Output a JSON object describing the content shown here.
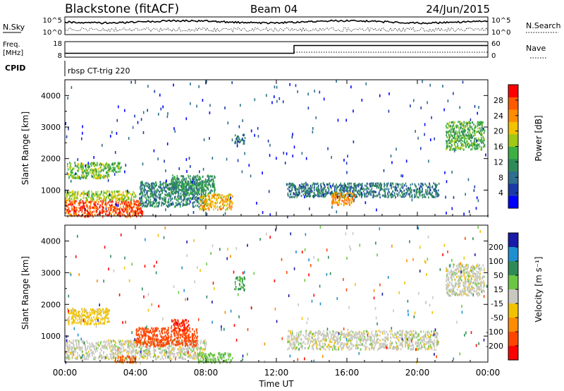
{
  "header": {
    "station": "Blackstone (fitACF)",
    "beam": "Beam 04",
    "date": "24/Jun/2015"
  },
  "top_panels": {
    "nsky_label": "N.Sky",
    "nsearch_label": "N.Search",
    "noise_ticks_left": [
      "10^5",
      "10^0"
    ],
    "noise_ticks_right": [
      "10^5",
      "10^0"
    ],
    "freq_label_1": "Freq.",
    "freq_label_2": "[MHz]",
    "freq_ticks": [
      "18",
      "8"
    ],
    "nave_label": "Nave",
    "nave_ticks": [
      "60",
      "0"
    ],
    "cpid_label": "CPID",
    "cpid_text": "rbsp CT-trig 220"
  },
  "power_panel": {
    "ylabel": "Slant Range [km]",
    "yticks": [
      "1000",
      "2000",
      "3000",
      "4000"
    ],
    "colorbar_title": "Power [dB]",
    "colorbar_ticks": [
      "4",
      "8",
      "12",
      "16",
      "20",
      "24",
      "28"
    ],
    "colorbar_colors": [
      "#0000ff",
      "#1a3aa8",
      "#2e6e8e",
      "#2e8b57",
      "#3cb043",
      "#a0c814",
      "#f2c200",
      "#ff8c00",
      "#ff5a00",
      "#ff0000"
    ]
  },
  "velocity_panel": {
    "ylabel": "Slant Range [km]",
    "yticks": [
      "1000",
      "2000",
      "3000",
      "4000"
    ],
    "colorbar_title": "Velocity [m s⁻¹]",
    "colorbar_ticks": [
      "200",
      "100",
      "50",
      "15",
      "-15",
      "-50",
      "-100",
      "-200"
    ],
    "colorbar_colors": [
      "#1a1aa8",
      "#1e90d0",
      "#2e8b57",
      "#6cc644",
      "#c8c8c0",
      "#f2c200",
      "#ff8c00",
      "#ff4500",
      "#ff0000"
    ]
  },
  "x_axis": {
    "tick_labels": [
      "00:00",
      "04:00",
      "08:00",
      "12:00",
      "16:00",
      "20:00",
      "00:00"
    ],
    "xlabel": "Time UT"
  },
  "chart_data": {
    "type": "heatmap",
    "x_range_hours": [
      0,
      24
    ],
    "y_range_km": [
      180,
      4500
    ],
    "power_regions_db": [
      {
        "t0": 0.0,
        "t1": 4.4,
        "r0": 180,
        "r1": 700,
        "power": 28
      },
      {
        "t0": 0.0,
        "t1": 4.0,
        "r0": 700,
        "r1": 1000,
        "power": 18
      },
      {
        "t0": 0.1,
        "t1": 2.5,
        "r0": 1400,
        "r1": 1900,
        "power": 16
      },
      {
        "t0": 2.4,
        "t1": 3.2,
        "r0": 1600,
        "r1": 1900,
        "power": 14
      },
      {
        "t0": 4.2,
        "t1": 8.0,
        "r0": 500,
        "r1": 1300,
        "power": 10
      },
      {
        "t0": 6.0,
        "t1": 8.5,
        "r0": 900,
        "r1": 1500,
        "power": 12
      },
      {
        "t0": 7.6,
        "t1": 9.5,
        "r0": 400,
        "r1": 900,
        "power": 22
      },
      {
        "t0": 9.6,
        "t1": 10.2,
        "r0": 2500,
        "r1": 2800,
        "power": 8
      },
      {
        "t0": 12.6,
        "t1": 21.2,
        "r0": 800,
        "r1": 1250,
        "power": 9
      },
      {
        "t0": 15.1,
        "t1": 16.4,
        "r0": 550,
        "r1": 950,
        "power": 24
      },
      {
        "t0": 21.6,
        "t1": 23.8,
        "r0": 2300,
        "r1": 3200,
        "power": 14
      }
    ],
    "velocity_regions_ms": [
      {
        "t0": 0.0,
        "t1": 8.0,
        "r0": 300,
        "r1": 900,
        "velocity": 0
      },
      {
        "t0": 2.8,
        "t1": 4.0,
        "r0": 180,
        "r1": 400,
        "velocity": -100
      },
      {
        "t0": 4.0,
        "t1": 7.5,
        "r0": 700,
        "r1": 1300,
        "velocity": -150
      },
      {
        "t0": 6.0,
        "t1": 7.0,
        "r0": 1200,
        "r1": 1550,
        "velocity": -200
      },
      {
        "t0": 0.1,
        "t1": 2.5,
        "r0": 1400,
        "r1": 1900,
        "velocity": -30
      },
      {
        "t0": 7.5,
        "t1": 9.5,
        "r0": 180,
        "r1": 500,
        "velocity": 30
      },
      {
        "t0": 9.6,
        "t1": 10.2,
        "r0": 2500,
        "r1": 2900,
        "velocity": 50
      },
      {
        "t0": 12.6,
        "t1": 21.2,
        "r0": 600,
        "r1": 1200,
        "velocity": 0
      },
      {
        "t0": 21.6,
        "t1": 23.8,
        "r0": 2300,
        "r1": 3300,
        "velocity": 0
      }
    ],
    "frequency_mhz_steps": [
      [
        0,
        10.5
      ],
      [
        13.0,
        15.5
      ],
      [
        24,
        15.5
      ]
    ]
  }
}
